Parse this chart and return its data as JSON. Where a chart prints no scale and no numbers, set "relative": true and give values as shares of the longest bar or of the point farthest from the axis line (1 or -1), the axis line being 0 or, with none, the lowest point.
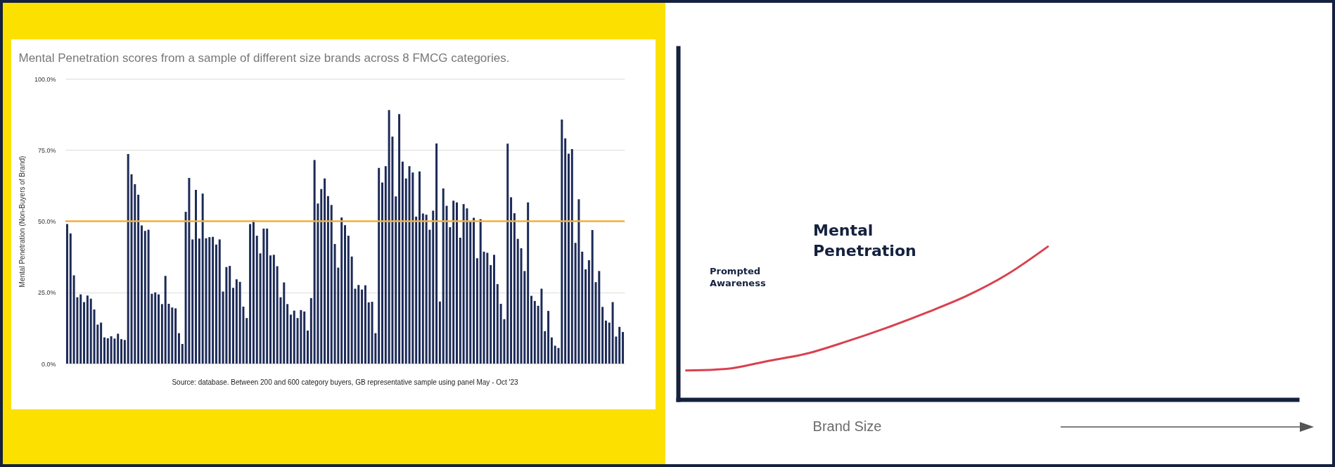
{
  "chart_data": [
    {
      "type": "bar",
      "title": "Mental Penetration scores from a sample of different size brands across 8 FMCG categories.",
      "ylabel": "Mental Penetration (Non-Buyers of Brand)",
      "categories": [
        null,
        null,
        null,
        null,
        null,
        null,
        null,
        null,
        null,
        null,
        null,
        null,
        null,
        null,
        null,
        null,
        null,
        null,
        null,
        null,
        null,
        null,
        null,
        null,
        null,
        null,
        null,
        null,
        null,
        null,
        null,
        null,
        null,
        null,
        null,
        null,
        null,
        null,
        null,
        null,
        null,
        null,
        null,
        null,
        null,
        null,
        null,
        null,
        null,
        null,
        null,
        null,
        null,
        null,
        null,
        null,
        null,
        null,
        null,
        null,
        null,
        null,
        null,
        null,
        null,
        null,
        null,
        null,
        null,
        null,
        null,
        null,
        null,
        null,
        null,
        null,
        null,
        null,
        null,
        null,
        null,
        null,
        null,
        null,
        null,
        null,
        null,
        null,
        null,
        null,
        null,
        null,
        null,
        null,
        null,
        null,
        null,
        null,
        null,
        null,
        null,
        null,
        null,
        null,
        null,
        null,
        null,
        null,
        null,
        null,
        null,
        null,
        null,
        null,
        null,
        null,
        null,
        null,
        null,
        null,
        null,
        null,
        null,
        null,
        null,
        null,
        null,
        null,
        null,
        null,
        null,
        null,
        null,
        null,
        null,
        null,
        null,
        null,
        null,
        null,
        null,
        null,
        null,
        null,
        null,
        null,
        null,
        null,
        null,
        null,
        null,
        null,
        null,
        null,
        null,
        null,
        null,
        null,
        null,
        null,
        null,
        null,
        null,
        null,
        null
      ],
      "values": [
        49,
        45.7,
        31,
        23.3,
        24.3,
        21.6,
        23.9,
        22.8,
        19,
        13.7,
        14.4,
        9.2,
        8.9,
        9.6,
        8.8,
        10.5,
        8.6,
        8.3,
        73.6,
        66.5,
        63,
        59.3,
        48.5,
        46.6,
        47,
        24.5,
        25,
        24.3,
        20.9,
        30.8,
        21,
        19.7,
        19.4,
        10.7,
        6.9,
        53.3,
        65.2,
        43.6,
        61,
        43.9,
        59.7,
        44,
        44.4,
        44.5,
        41.8,
        43.6,
        25.3,
        33.9,
        34.3,
        26.6,
        29.6,
        28.7,
        20,
        16,
        49,
        50.3,
        44.9,
        38.7,
        47.4,
        47.4,
        38,
        38.2,
        34.2,
        23.3,
        28.5,
        20.9,
        17.2,
        18.6,
        16,
        18.8,
        18.3,
        11.6,
        23,
        71.5,
        56.2,
        61.3,
        65,
        58.8,
        55.7,
        42,
        33.7,
        51.3,
        48.6,
        44.9,
        37.6,
        26.3,
        27.6,
        26,
        27.5,
        21.5,
        21.7,
        10.7,
        68.7,
        63.6,
        69.3,
        89,
        79.7,
        58.7,
        87.6,
        70.9,
        65,
        69.3,
        67.1,
        51.6,
        67.5,
        52.7,
        52.3,
        47,
        53.7,
        77.3,
        21.8,
        61.5,
        55.4,
        47.9,
        57.2,
        56.6,
        44.2,
        56,
        54.5,
        49.8,
        51.2,
        37,
        50.7,
        39.3,
        38.9,
        34.6,
        38.2,
        27.9,
        21,
        15.6,
        77.2,
        58.4,
        52.8,
        43.8,
        40.5,
        32.5,
        56.6,
        23.8,
        22,
        20.3,
        26.3,
        11.4,
        18.5,
        9.2,
        6.3,
        5.5,
        85.7,
        79.1,
        73.7,
        75.3,
        42.4,
        57.7,
        39.3,
        33.1,
        36.3,
        46.9,
        28.6,
        32.5,
        19.9,
        15.1,
        14.4,
        21.6,
        9.5,
        12.9,
        11.1
      ],
      "color": "#1c2a57",
      "ylim": [
        0,
        100
      ],
      "yticks": [
        {
          "value": 0,
          "label": "0.0%"
        },
        {
          "value": 25,
          "label": "25.0%"
        },
        {
          "value": 50,
          "label": "50.0%"
        },
        {
          "value": 75,
          "label": "75.0%"
        },
        {
          "value": 100,
          "label": "100.0%"
        }
      ],
      "grid": "y",
      "ref_lines": [
        {
          "axis": "y",
          "value": 50,
          "color": "#f0b445"
        }
      ],
      "annotations": [
        "Source:  database.  Between 200 and 600 category buyers, GB representative sample using panel May - Oct '23"
      ]
    },
    {
      "type": "line",
      "relative": true,
      "xlabel": "Brand Size",
      "categories": [
        null,
        null,
        null,
        null,
        null,
        null,
        null,
        null,
        null,
        null,
        null,
        null,
        null,
        null,
        null,
        null
      ],
      "series": [
        {
          "color": "#d9414f",
          "values": [
            0.19,
            0.2,
            0.25,
            0.3,
            0.38,
            0.47,
            0.57,
            0.68,
            0.82,
            1,
            null,
            null,
            null,
            null,
            null,
            null
          ]
        }
      ],
      "annotations": [
        "Mental Penetration",
        "Prompted Awareness"
      ]
    }
  ]
}
